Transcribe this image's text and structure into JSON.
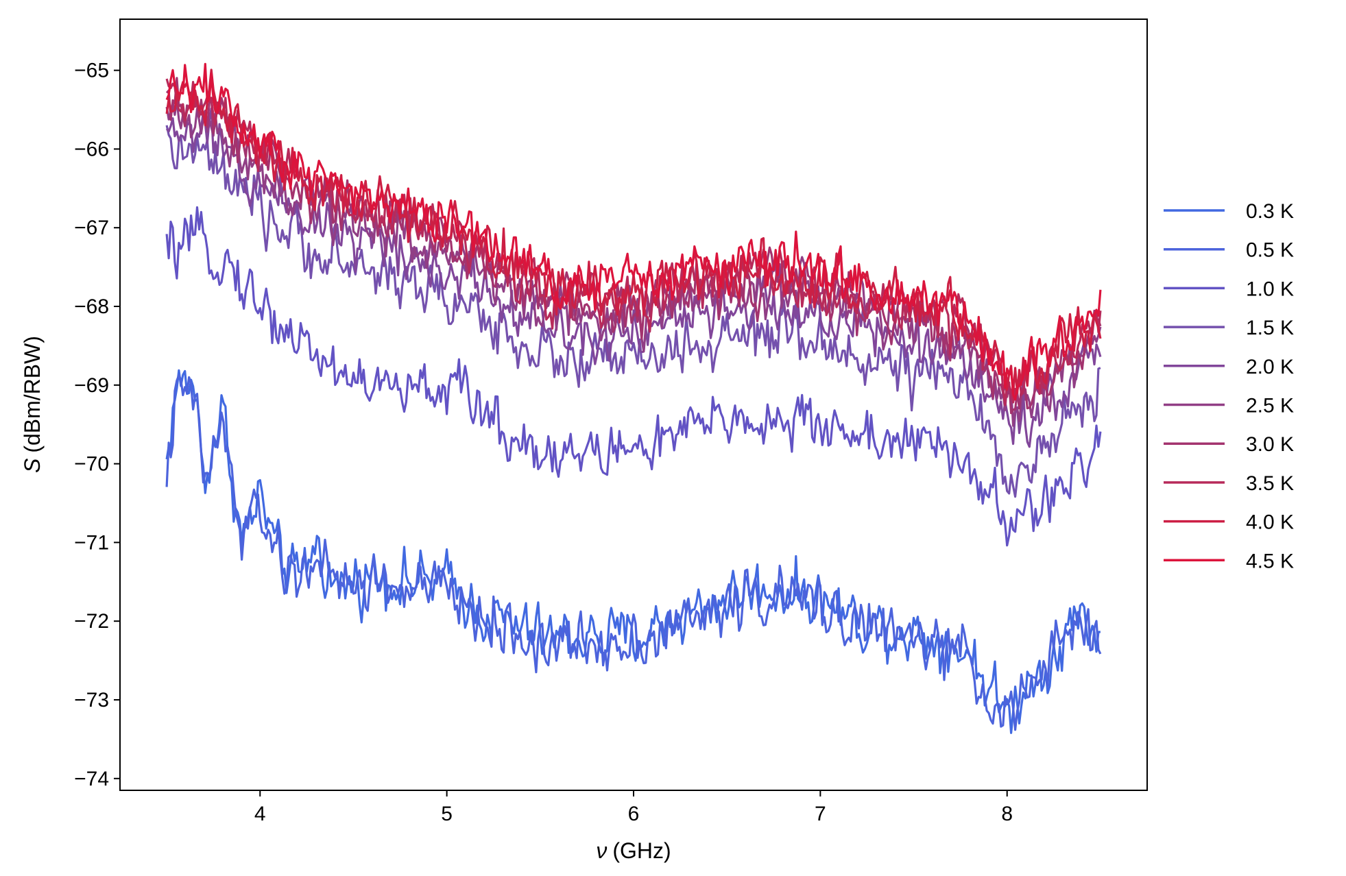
{
  "chart_data": {
    "type": "line",
    "xlabel": "ν (GHz)",
    "xlabel_symbol": "ν",
    "xlabel_unit": "(GHz)",
    "ylabel": "S (dBm/RBW)",
    "ylabel_symbol": "S",
    "ylabel_unit": "(dBm/RBW)",
    "xlim": [
      3.25,
      8.75
    ],
    "ylim": [
      -74.15,
      -64.35
    ],
    "xticks": [
      4,
      5,
      6,
      7,
      8
    ],
    "yticks": [
      -74,
      -73,
      -72,
      -71,
      -70,
      -69,
      -68,
      -67,
      -66,
      -65
    ],
    "grid": false,
    "legend_position": "outside-right",
    "x_range": [
      3.5,
      8.5
    ],
    "series": [
      {
        "name": "0.3 K",
        "color": "#4169e1",
        "baseline": [
          [
            3.5,
            -70.0
          ],
          [
            3.55,
            -69.0
          ],
          [
            3.6,
            -69.0
          ],
          [
            3.65,
            -69.0
          ],
          [
            3.7,
            -70.2
          ],
          [
            3.8,
            -69.3
          ],
          [
            3.9,
            -71.0
          ],
          [
            4.0,
            -70.4
          ],
          [
            4.1,
            -71.2
          ],
          [
            4.2,
            -71.5
          ],
          [
            4.3,
            -71.0
          ],
          [
            4.4,
            -71.6
          ],
          [
            4.6,
            -71.4
          ],
          [
            4.8,
            -71.5
          ],
          [
            5.0,
            -71.5
          ],
          [
            5.2,
            -71.9
          ],
          [
            5.5,
            -72.2
          ],
          [
            5.8,
            -72.2
          ],
          [
            6.0,
            -72.2
          ],
          [
            6.2,
            -72.0
          ],
          [
            6.4,
            -71.8
          ],
          [
            6.6,
            -71.6
          ],
          [
            6.8,
            -71.6
          ],
          [
            7.0,
            -71.7
          ],
          [
            7.2,
            -72.0
          ],
          [
            7.4,
            -72.1
          ],
          [
            7.6,
            -72.2
          ],
          [
            7.8,
            -72.4
          ],
          [
            8.0,
            -73.2
          ],
          [
            8.1,
            -72.8
          ],
          [
            8.2,
            -72.6
          ],
          [
            8.3,
            -72.2
          ],
          [
            8.4,
            -71.9
          ],
          [
            8.5,
            -72.2
          ]
        ],
        "noise": 0.26
      },
      {
        "name": "0.5 K",
        "color": "#4c63dc",
        "baseline": [
          [
            3.5,
            -70.1
          ],
          [
            3.55,
            -69.2
          ],
          [
            3.6,
            -69.1
          ],
          [
            3.65,
            -69.2
          ],
          [
            3.7,
            -70.2
          ],
          [
            3.8,
            -69.5
          ],
          [
            3.9,
            -71.0
          ],
          [
            4.0,
            -70.5
          ],
          [
            4.1,
            -71.3
          ],
          [
            4.2,
            -71.5
          ],
          [
            4.3,
            -71.1
          ],
          [
            4.4,
            -71.6
          ],
          [
            4.6,
            -71.5
          ],
          [
            4.8,
            -71.6
          ],
          [
            5.0,
            -71.6
          ],
          [
            5.2,
            -72.0
          ],
          [
            5.5,
            -72.3
          ],
          [
            5.8,
            -72.3
          ],
          [
            6.0,
            -72.2
          ],
          [
            6.2,
            -72.1
          ],
          [
            6.4,
            -71.9
          ],
          [
            6.6,
            -71.7
          ],
          [
            6.8,
            -71.7
          ],
          [
            7.0,
            -71.8
          ],
          [
            7.2,
            -72.0
          ],
          [
            7.4,
            -72.2
          ],
          [
            7.6,
            -72.3
          ],
          [
            7.8,
            -72.5
          ],
          [
            8.0,
            -73.3
          ],
          [
            8.1,
            -72.9
          ],
          [
            8.2,
            -72.7
          ],
          [
            8.3,
            -72.2
          ],
          [
            8.4,
            -72.0
          ],
          [
            8.5,
            -72.3
          ]
        ],
        "noise": 0.26
      },
      {
        "name": "1.0 K",
        "color": "#6253c4",
        "baseline": [
          [
            3.5,
            -67.3
          ],
          [
            3.7,
            -67.2
          ],
          [
            3.85,
            -67.5
          ],
          [
            4.0,
            -68.0
          ],
          [
            4.2,
            -68.4
          ],
          [
            4.4,
            -68.8
          ],
          [
            4.6,
            -69.0
          ],
          [
            4.8,
            -69.1
          ],
          [
            5.0,
            -69.0
          ],
          [
            5.2,
            -69.3
          ],
          [
            5.3,
            -69.6
          ],
          [
            5.5,
            -69.8
          ],
          [
            5.7,
            -69.9
          ],
          [
            6.0,
            -69.8
          ],
          [
            6.2,
            -69.7
          ],
          [
            6.4,
            -69.5
          ],
          [
            6.6,
            -69.4
          ],
          [
            6.8,
            -69.5
          ],
          [
            7.0,
            -69.5
          ],
          [
            7.2,
            -69.6
          ],
          [
            7.4,
            -69.7
          ],
          [
            7.6,
            -69.8
          ],
          [
            7.8,
            -70.0
          ],
          [
            7.9,
            -70.4
          ],
          [
            8.0,
            -70.8
          ],
          [
            8.2,
            -70.5
          ],
          [
            8.35,
            -70.2
          ],
          [
            8.45,
            -70.0
          ],
          [
            8.5,
            -69.7
          ]
        ],
        "noise": 0.25
      },
      {
        "name": "1.5 K",
        "color": "#7451ad",
        "baseline": [
          [
            3.5,
            -66.0
          ],
          [
            3.7,
            -66.1
          ],
          [
            3.9,
            -66.6
          ],
          [
            4.1,
            -67.0
          ],
          [
            4.3,
            -67.3
          ],
          [
            4.5,
            -67.5
          ],
          [
            4.7,
            -67.6
          ],
          [
            4.9,
            -67.8
          ],
          [
            5.1,
            -68.0
          ],
          [
            5.3,
            -68.3
          ],
          [
            5.5,
            -68.6
          ],
          [
            5.7,
            -68.7
          ],
          [
            6.0,
            -68.7
          ],
          [
            6.2,
            -68.6
          ],
          [
            6.4,
            -68.5
          ],
          [
            6.6,
            -68.4
          ],
          [
            6.8,
            -68.4
          ],
          [
            7.0,
            -68.5
          ],
          [
            7.2,
            -68.6
          ],
          [
            7.4,
            -68.8
          ],
          [
            7.6,
            -68.9
          ],
          [
            7.8,
            -69.1
          ],
          [
            7.95,
            -69.9
          ],
          [
            8.05,
            -70.1
          ],
          [
            8.2,
            -69.8
          ],
          [
            8.35,
            -69.4
          ],
          [
            8.45,
            -69.2
          ],
          [
            8.5,
            -68.8
          ]
        ],
        "noise": 0.25
      },
      {
        "name": "2.0 K",
        "color": "#81469a",
        "baseline": [
          [
            3.5,
            -65.8
          ],
          [
            3.7,
            -65.8
          ],
          [
            3.9,
            -66.3
          ],
          [
            4.1,
            -66.6
          ],
          [
            4.3,
            -66.9
          ],
          [
            4.5,
            -67.1
          ],
          [
            4.7,
            -67.2
          ],
          [
            4.9,
            -67.4
          ],
          [
            5.1,
            -67.6
          ],
          [
            5.3,
            -67.9
          ],
          [
            5.5,
            -68.2
          ],
          [
            5.7,
            -68.3
          ],
          [
            6.0,
            -68.3
          ],
          [
            6.2,
            -68.2
          ],
          [
            6.4,
            -68.1
          ],
          [
            6.6,
            -68.0
          ],
          [
            6.8,
            -68.0
          ],
          [
            7.0,
            -68.1
          ],
          [
            7.2,
            -68.3
          ],
          [
            7.4,
            -68.4
          ],
          [
            7.6,
            -68.5
          ],
          [
            7.8,
            -68.7
          ],
          [
            7.95,
            -69.3
          ],
          [
            8.05,
            -69.5
          ],
          [
            8.2,
            -69.2
          ],
          [
            8.35,
            -68.9
          ],
          [
            8.45,
            -68.7
          ],
          [
            8.5,
            -68.5
          ]
        ],
        "noise": 0.24
      },
      {
        "name": "2.5 K",
        "color": "#913e85",
        "baseline": [
          [
            3.5,
            -65.6
          ],
          [
            3.7,
            -65.6
          ],
          [
            3.9,
            -66.0
          ],
          [
            4.1,
            -66.4
          ],
          [
            4.3,
            -66.7
          ],
          [
            4.5,
            -66.9
          ],
          [
            4.7,
            -67.0
          ],
          [
            4.9,
            -67.2
          ],
          [
            5.1,
            -67.4
          ],
          [
            5.3,
            -67.7
          ],
          [
            5.5,
            -68.0
          ],
          [
            5.7,
            -68.1
          ],
          [
            6.0,
            -68.1
          ],
          [
            6.2,
            -68.0
          ],
          [
            6.4,
            -67.9
          ],
          [
            6.6,
            -67.8
          ],
          [
            6.8,
            -67.8
          ],
          [
            7.0,
            -67.9
          ],
          [
            7.2,
            -68.1
          ],
          [
            7.4,
            -68.2
          ],
          [
            7.6,
            -68.3
          ],
          [
            7.8,
            -68.5
          ],
          [
            7.95,
            -69.1
          ],
          [
            8.05,
            -69.3
          ],
          [
            8.2,
            -69.0
          ],
          [
            8.35,
            -68.7
          ],
          [
            8.45,
            -68.5
          ],
          [
            8.5,
            -68.3
          ]
        ],
        "noise": 0.24
      },
      {
        "name": "3.0 K",
        "color": "#a3336e",
        "baseline": [
          [
            3.5,
            -65.5
          ],
          [
            3.7,
            -65.5
          ],
          [
            3.9,
            -65.9
          ],
          [
            4.1,
            -66.3
          ],
          [
            4.3,
            -66.6
          ],
          [
            4.5,
            -66.8
          ],
          [
            4.7,
            -66.9
          ],
          [
            4.9,
            -67.1
          ],
          [
            5.1,
            -67.3
          ],
          [
            5.3,
            -67.6
          ],
          [
            5.5,
            -67.9
          ],
          [
            5.7,
            -68.0
          ],
          [
            6.0,
            -68.0
          ],
          [
            6.2,
            -67.9
          ],
          [
            6.4,
            -67.8
          ],
          [
            6.6,
            -67.7
          ],
          [
            6.8,
            -67.7
          ],
          [
            7.0,
            -67.8
          ],
          [
            7.2,
            -68.0
          ],
          [
            7.4,
            -68.1
          ],
          [
            7.6,
            -68.2
          ],
          [
            7.8,
            -68.4
          ],
          [
            7.95,
            -69.0
          ],
          [
            8.05,
            -69.2
          ],
          [
            8.2,
            -68.9
          ],
          [
            8.35,
            -68.6
          ],
          [
            8.45,
            -68.4
          ],
          [
            8.5,
            -68.2
          ]
        ],
        "noise": 0.24
      },
      {
        "name": "3.5 K",
        "color": "#b72a5a",
        "baseline": [
          [
            3.5,
            -65.4
          ],
          [
            3.7,
            -65.4
          ],
          [
            3.9,
            -65.8
          ],
          [
            4.1,
            -66.2
          ],
          [
            4.3,
            -66.5
          ],
          [
            4.5,
            -66.7
          ],
          [
            4.7,
            -66.8
          ],
          [
            4.9,
            -67.0
          ],
          [
            5.1,
            -67.2
          ],
          [
            5.3,
            -67.5
          ],
          [
            5.5,
            -67.8
          ],
          [
            5.7,
            -67.9
          ],
          [
            6.0,
            -67.9
          ],
          [
            6.2,
            -67.8
          ],
          [
            6.4,
            -67.7
          ],
          [
            6.6,
            -67.6
          ],
          [
            6.8,
            -67.6
          ],
          [
            7.0,
            -67.7
          ],
          [
            7.2,
            -67.9
          ],
          [
            7.4,
            -68.0
          ],
          [
            7.6,
            -68.1
          ],
          [
            7.8,
            -68.3
          ],
          [
            7.95,
            -68.9
          ],
          [
            8.05,
            -69.1
          ],
          [
            8.2,
            -68.8
          ],
          [
            8.35,
            -68.5
          ],
          [
            8.45,
            -68.3
          ],
          [
            8.5,
            -68.1
          ]
        ],
        "noise": 0.24
      },
      {
        "name": "4.0 K",
        "color": "#cc1f44",
        "baseline": [
          [
            3.5,
            -65.3
          ],
          [
            3.7,
            -65.3
          ],
          [
            3.9,
            -65.7
          ],
          [
            4.1,
            -66.1
          ],
          [
            4.3,
            -66.4
          ],
          [
            4.5,
            -66.6
          ],
          [
            4.7,
            -66.7
          ],
          [
            4.9,
            -66.9
          ],
          [
            5.1,
            -67.1
          ],
          [
            5.3,
            -67.4
          ],
          [
            5.5,
            -67.7
          ],
          [
            5.7,
            -67.8
          ],
          [
            6.0,
            -67.8
          ],
          [
            6.2,
            -67.7
          ],
          [
            6.4,
            -67.6
          ],
          [
            6.6,
            -67.5
          ],
          [
            6.8,
            -67.5
          ],
          [
            7.0,
            -67.6
          ],
          [
            7.2,
            -67.8
          ],
          [
            7.4,
            -67.9
          ],
          [
            7.6,
            -68.0
          ],
          [
            7.8,
            -68.2
          ],
          [
            7.95,
            -68.8
          ],
          [
            8.05,
            -69.0
          ],
          [
            8.2,
            -68.7
          ],
          [
            8.35,
            -68.4
          ],
          [
            8.45,
            -68.2
          ],
          [
            8.5,
            -68.0
          ]
        ],
        "noise": 0.24
      },
      {
        "name": "4.5 K",
        "color": "#dc143c",
        "baseline": [
          [
            3.5,
            -65.2
          ],
          [
            3.7,
            -65.2
          ],
          [
            3.9,
            -65.6
          ],
          [
            4.1,
            -66.0
          ],
          [
            4.3,
            -66.3
          ],
          [
            4.5,
            -66.5
          ],
          [
            4.7,
            -66.6
          ],
          [
            4.9,
            -66.8
          ],
          [
            5.1,
            -67.0
          ],
          [
            5.3,
            -67.3
          ],
          [
            5.5,
            -67.6
          ],
          [
            5.7,
            -67.7
          ],
          [
            6.0,
            -67.7
          ],
          [
            6.2,
            -67.6
          ],
          [
            6.4,
            -67.5
          ],
          [
            6.6,
            -67.4
          ],
          [
            6.8,
            -67.4
          ],
          [
            7.0,
            -67.5
          ],
          [
            7.2,
            -67.7
          ],
          [
            7.4,
            -67.8
          ],
          [
            7.6,
            -67.9
          ],
          [
            7.8,
            -68.1
          ],
          [
            7.95,
            -68.7
          ],
          [
            8.05,
            -68.9
          ],
          [
            8.2,
            -68.6
          ],
          [
            8.35,
            -68.3
          ],
          [
            8.45,
            -68.1
          ],
          [
            8.5,
            -67.9
          ]
        ],
        "noise": 0.24
      }
    ]
  }
}
